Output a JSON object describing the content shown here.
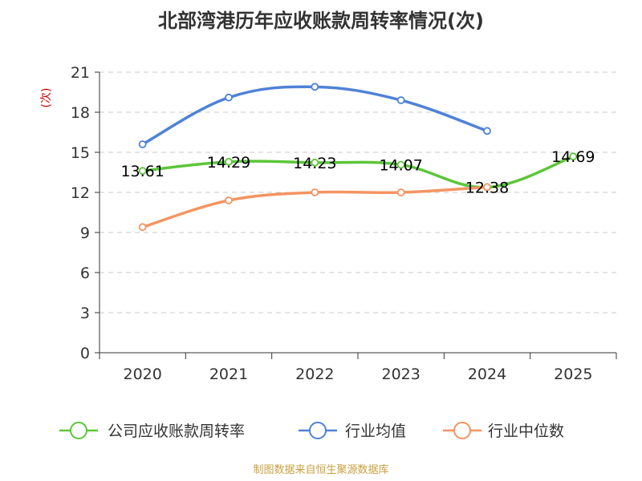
{
  "chart_data": {
    "type": "line",
    "title": "北部湾港历年应收账款周转率情况(次)",
    "ylabel": "(次)",
    "xlabel": "",
    "categories": [
      "2020",
      "2021",
      "2022",
      "2023",
      "2024",
      "2025"
    ],
    "ylim": [
      0,
      21
    ],
    "yticks": [
      0,
      3,
      6,
      9,
      12,
      15,
      18,
      21
    ],
    "grid": true,
    "series": [
      {
        "name": "公司应收账款周转率",
        "color": "#5cc639",
        "values": [
          13.61,
          14.29,
          14.23,
          14.07,
          12.38,
          14.69
        ],
        "labels": [
          "13.61",
          "14.29",
          "14.23",
          "14.07",
          "12.38",
          "14.69"
        ],
        "show_labels": true
      },
      {
        "name": "行业均值",
        "color": "#4f82d8",
        "values": [
          15.6,
          19.1,
          19.9,
          18.9,
          16.6,
          null
        ],
        "show_labels": false
      },
      {
        "name": "行业中位数",
        "color": "#f49461",
        "values": [
          9.4,
          11.4,
          12.0,
          12.0,
          12.4,
          null
        ],
        "show_labels": false
      }
    ],
    "legend_position": "bottom",
    "source": "制图数据来自恒生聚源数据库"
  }
}
